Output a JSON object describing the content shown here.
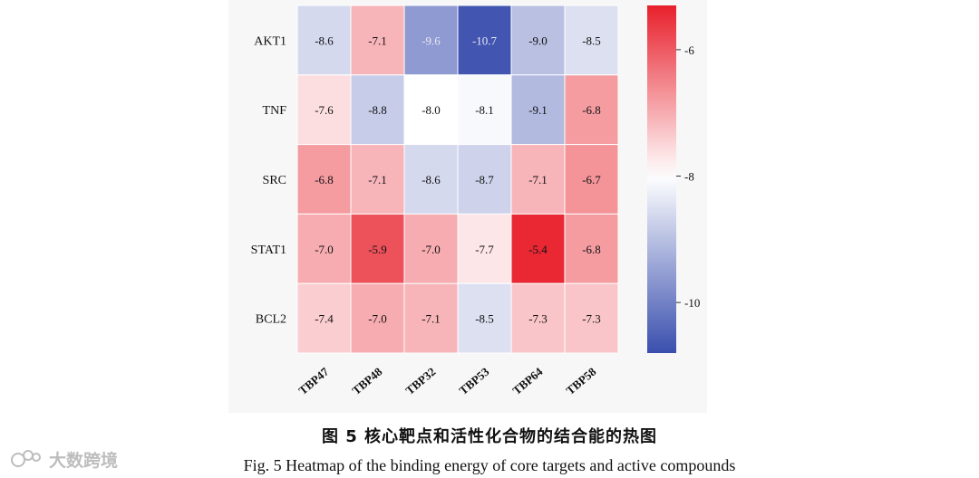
{
  "chart_data": {
    "type": "heatmap",
    "rows": [
      "AKT1",
      "TNF",
      "SRC",
      "STAT1",
      "BCL2"
    ],
    "columns": [
      "TBP47",
      "TBP48",
      "TBP32",
      "TBP53",
      "TBP64",
      "TBP58"
    ],
    "values": [
      [
        -8.6,
        -7.1,
        -9.6,
        -10.7,
        -9.0,
        -8.5
      ],
      [
        -7.6,
        -8.8,
        -8.0,
        -8.1,
        -9.1,
        -6.8
      ],
      [
        -6.8,
        -7.1,
        -8.6,
        -8.7,
        -7.1,
        -6.7
      ],
      [
        -7.0,
        -5.9,
        -7.0,
        -7.7,
        -5.4,
        -6.8
      ],
      [
        -7.4,
        -7.0,
        -7.1,
        -8.5,
        -7.3,
        -7.3
      ]
    ],
    "value_labels": [
      [
        "-8.6",
        "-7.1",
        "-9.6",
        "-10.7",
        "-9.0",
        "-8.5"
      ],
      [
        "-7.6",
        "-8.8",
        "-8.0",
        "-8.1",
        "-9.1",
        "-6.8"
      ],
      [
        "-6.8",
        "-7.1",
        "-8.6",
        "-8.7",
        "-7.1",
        "-6.7"
      ],
      [
        "-7.0",
        "-5.9",
        "-7.0",
        "-7.7",
        "-5.4",
        "-6.8"
      ],
      [
        "-7.4",
        "-7.0",
        "-7.1",
        "-8.5",
        "-7.3",
        "-7.3"
      ]
    ],
    "colorbar": {
      "min": -10.8,
      "max": -5.3,
      "center": -8.0,
      "ticks": [
        -6,
        -8,
        -10
      ],
      "tick_labels": [
        "-6",
        "-8",
        "-10"
      ]
    },
    "colors": {
      "low": "#3a4fae",
      "mid": "#ffffff",
      "high": "#e8202c"
    }
  },
  "caption": {
    "cn": "图 5    核心靶点和活性化合物的结合能的热图",
    "en": "Fig. 5    Heatmap of the binding energy of core targets and active compounds"
  },
  "watermark": {
    "text": "大数跨境"
  }
}
